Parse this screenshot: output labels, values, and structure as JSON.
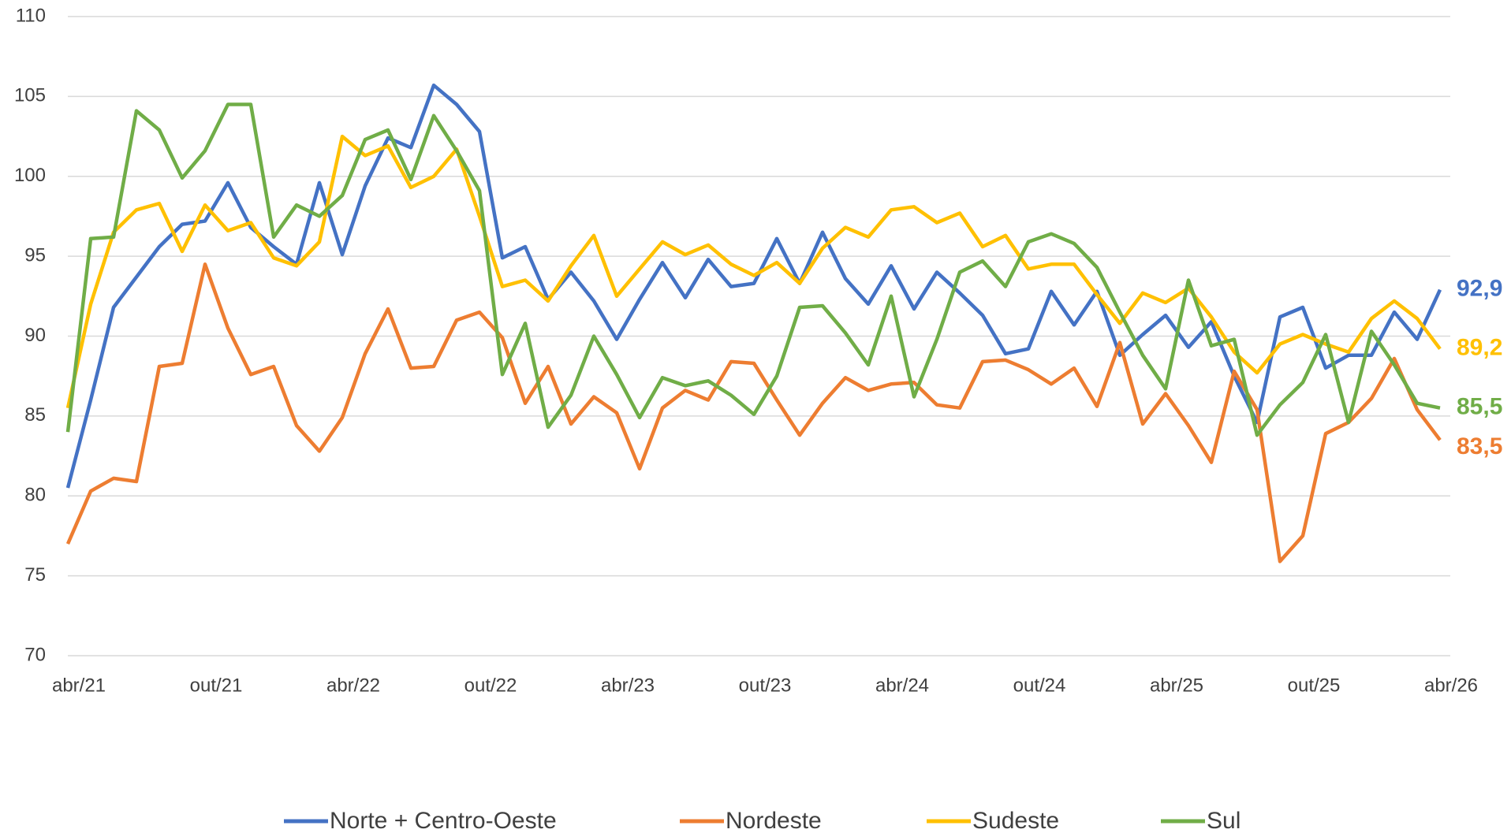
{
  "chart_data": {
    "type": "line",
    "categories": [
      "abr/21",
      null,
      null,
      null,
      null,
      null,
      "out/21",
      null,
      null,
      null,
      null,
      null,
      "abr/22",
      null,
      null,
      null,
      null,
      null,
      "out/22",
      null,
      null,
      null,
      null,
      null,
      "abr/23",
      null,
      null,
      null,
      null,
      null,
      "out/23",
      null,
      null,
      null,
      null,
      null,
      "abr/24",
      null,
      null,
      null,
      null,
      null,
      "out/24",
      null,
      null,
      null,
      null,
      null,
      "abr/25",
      null,
      null,
      null,
      null,
      null,
      "out/25",
      null,
      null,
      null,
      null,
      null,
      "abr/26"
    ],
    "ylim": [
      70,
      110
    ],
    "yticks": [
      70,
      75,
      80,
      85,
      90,
      95,
      100,
      105,
      110
    ],
    "grid": true,
    "legend": "bottom",
    "series": [
      {
        "name": "Norte + Centro-Oeste",
        "color": "#4472c4",
        "values": [
          80.5,
          86,
          91.8,
          93.7,
          95.6,
          97.0,
          97.2,
          99.6,
          96.8,
          95.6,
          94.5,
          99.6,
          95.1,
          99.4,
          102.4,
          101.8,
          105.7,
          104.5,
          102.8,
          94.9,
          95.6,
          92.3,
          94.0,
          92.2,
          89.8,
          92.3,
          94.6,
          92.4,
          94.8,
          93.1,
          93.3,
          96.1,
          93.3,
          96.5,
          93.6,
          92.0,
          94.4,
          91.7,
          94.0,
          92.7,
          91.3,
          88.9,
          89.2,
          92.8,
          90.7,
          92.8,
          88.8,
          90.1,
          91.3,
          89.3,
          90.9,
          87.5,
          84.6,
          91.2,
          91.8,
          88.0,
          88.8,
          88.8,
          91.5,
          89.8,
          92.9
        ],
        "value_labels": [
          null,
          null,
          null,
          null,
          null,
          null,
          null,
          null,
          null,
          null,
          null,
          null,
          null,
          null,
          null,
          null,
          null,
          null,
          null,
          null,
          null,
          null,
          null,
          null,
          null,
          null,
          null,
          null,
          null,
          null,
          null,
          null,
          null,
          null,
          null,
          null,
          null,
          null,
          null,
          null,
          null,
          null,
          null,
          null,
          null,
          null,
          null,
          null,
          null,
          null,
          null,
          null,
          null,
          null,
          null,
          null,
          null,
          null,
          null,
          null,
          "92,9"
        ]
      },
      {
        "name": "Nordeste",
        "color": "#ed7d31",
        "values": [
          77,
          80.3,
          81.1,
          80.9,
          88.1,
          88.3,
          94.5,
          90.5,
          87.6,
          88.1,
          84.4,
          82.8,
          84.9,
          88.9,
          91.7,
          88.0,
          88.1,
          91.0,
          91.5,
          89.9,
          85.8,
          88.1,
          84.5,
          86.2,
          85.2,
          81.7,
          85.5,
          86.6,
          86.0,
          88.4,
          88.3,
          86.0,
          83.8,
          85.8,
          87.4,
          86.6,
          87.0,
          87.1,
          85.7,
          85.5,
          88.4,
          88.5,
          87.9,
          87.0,
          88.0,
          85.6,
          89.6,
          84.5,
          86.4,
          84.4,
          82.1,
          87.8,
          85.4,
          75.9,
          77.5,
          83.9,
          84.6,
          86.1,
          88.6,
          85.4,
          83.5
        ],
        "value_labels": [
          null,
          null,
          null,
          null,
          null,
          null,
          null,
          null,
          null,
          null,
          null,
          null,
          null,
          null,
          null,
          null,
          null,
          null,
          null,
          null,
          null,
          null,
          null,
          null,
          null,
          null,
          null,
          null,
          null,
          null,
          null,
          null,
          null,
          null,
          null,
          null,
          null,
          null,
          null,
          null,
          null,
          null,
          null,
          null,
          null,
          null,
          null,
          null,
          null,
          null,
          null,
          null,
          null,
          null,
          null,
          null,
          null,
          null,
          null,
          null,
          "83,5"
        ]
      },
      {
        "name": "Sudeste",
        "color": "#ffc000",
        "values": [
          85.5,
          92,
          96.5,
          97.9,
          98.3,
          95.3,
          98.2,
          96.6,
          97.1,
          94.9,
          94.4,
          95.9,
          102.5,
          101.3,
          101.9,
          99.3,
          100.0,
          101.7,
          97.5,
          93.1,
          93.5,
          92.2,
          94.4,
          96.3,
          92.5,
          94.2,
          95.9,
          95.1,
          95.7,
          94.5,
          93.8,
          94.6,
          93.3,
          95.5,
          96.8,
          96.2,
          97.9,
          98.1,
          97.1,
          97.7,
          95.6,
          96.3,
          94.2,
          94.5,
          94.5,
          92.6,
          90.8,
          92.7,
          92.1,
          93.0,
          91.2,
          89.0,
          87.7,
          89.5,
          90.1,
          89.5,
          89.0,
          91.1,
          92.2,
          91.1,
          89.2
        ],
        "value_labels": [
          null,
          null,
          null,
          null,
          null,
          null,
          null,
          null,
          null,
          null,
          null,
          null,
          null,
          null,
          null,
          null,
          null,
          null,
          null,
          null,
          null,
          null,
          null,
          null,
          null,
          null,
          null,
          null,
          null,
          null,
          null,
          null,
          null,
          null,
          null,
          null,
          null,
          null,
          null,
          null,
          null,
          null,
          null,
          null,
          null,
          null,
          null,
          null,
          null,
          null,
          null,
          null,
          null,
          null,
          null,
          null,
          null,
          null,
          null,
          null,
          "89,2"
        ]
      },
      {
        "name": "Sul",
        "color": "#70ad47",
        "values": [
          84,
          96.1,
          96.2,
          104.1,
          102.9,
          99.9,
          101.6,
          104.5,
          104.5,
          96.2,
          98.2,
          97.5,
          98.8,
          102.3,
          102.9,
          99.8,
          103.8,
          101.6,
          99.1,
          87.6,
          90.8,
          84.3,
          86.3,
          90.0,
          87.6,
          84.9,
          87.4,
          86.9,
          87.2,
          86.3,
          85.1,
          87.5,
          91.8,
          91.9,
          90.2,
          88.2,
          92.5,
          86.2,
          89.8,
          94.0,
          94.7,
          93.1,
          95.9,
          96.4,
          95.8,
          94.3,
          91.5,
          88.8,
          86.7,
          93.5,
          89.4,
          89.8,
          83.8,
          85.7,
          87.1,
          90.1,
          84.6,
          90.3,
          88.2,
          85.8,
          85.5
        ],
        "value_labels": [
          null,
          null,
          null,
          null,
          null,
          null,
          null,
          null,
          null,
          null,
          null,
          null,
          null,
          null,
          null,
          null,
          null,
          null,
          null,
          null,
          null,
          null,
          null,
          null,
          null,
          null,
          null,
          null,
          null,
          null,
          null,
          null,
          null,
          null,
          null,
          null,
          null,
          null,
          null,
          null,
          null,
          null,
          null,
          null,
          null,
          null,
          null,
          null,
          null,
          null,
          null,
          null,
          null,
          null,
          null,
          null,
          null,
          null,
          null,
          null,
          "85,5"
        ]
      }
    ]
  }
}
